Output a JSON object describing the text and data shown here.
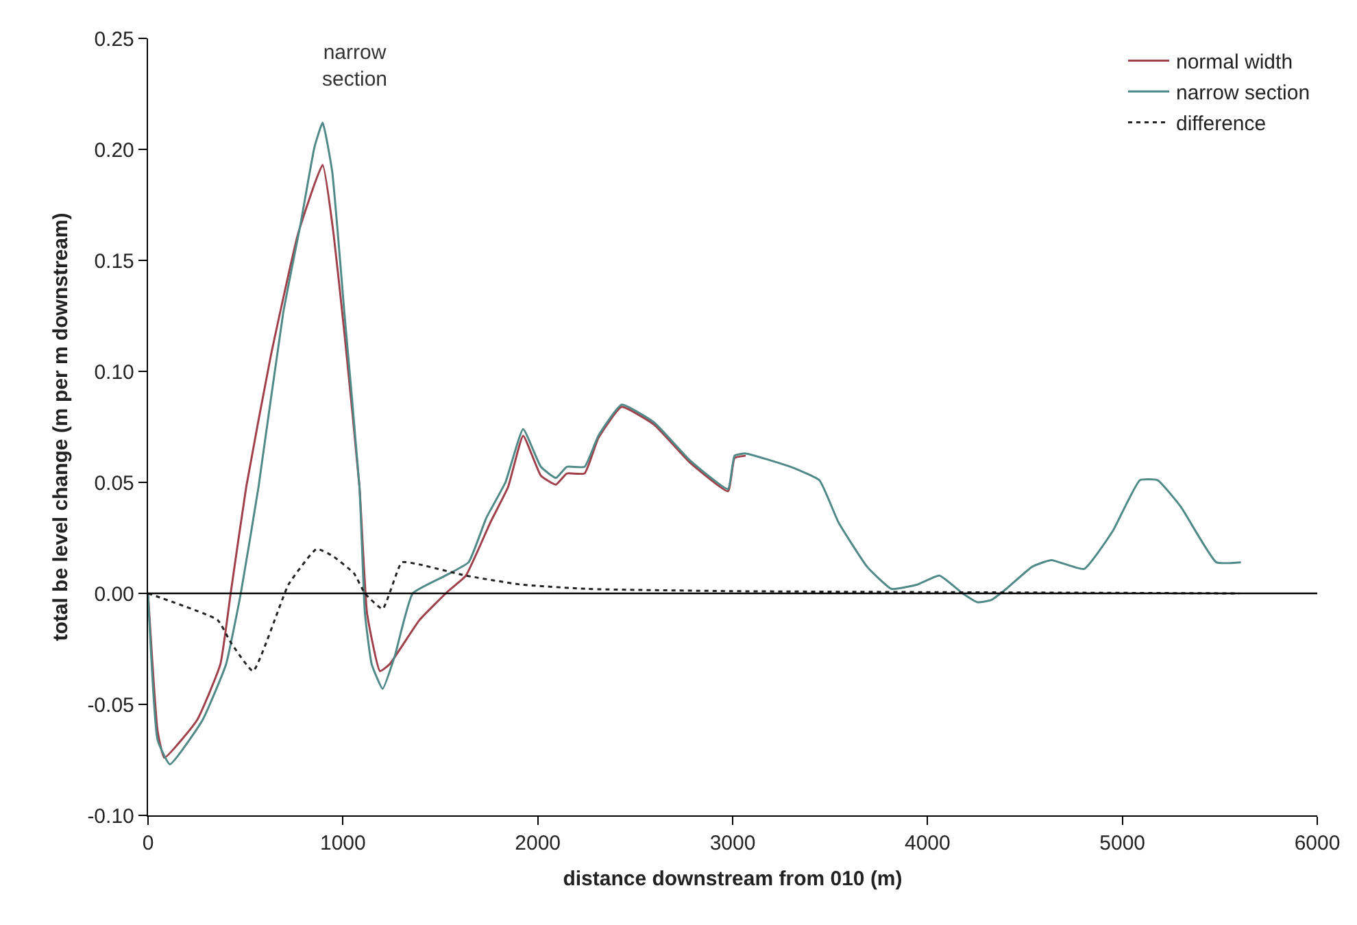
{
  "chart_data": {
    "type": "line",
    "xlabel": "distance downstream from 010 (m)",
    "ylabel": "total be level change (m per m downstream)",
    "xlim": [
      0,
      6000
    ],
    "xticks": [
      0,
      1000,
      2000,
      3000,
      4000,
      5000,
      6000
    ],
    "ylim": [
      -0.1,
      0.25
    ],
    "yticks": [
      {
        "value": -0.1,
        "label": "-0.10"
      },
      {
        "value": -0.05,
        "label": "-0.05"
      },
      {
        "value": 0,
        "label": "0.00"
      },
      {
        "value": 0.05,
        "label": "0.05"
      },
      {
        "value": 0.1,
        "label": "0.10"
      },
      {
        "value": 0.15,
        "label": "0.15"
      },
      {
        "value": 0.2,
        "label": "0.20"
      },
      {
        "value": 0.25,
        "label": "0.25"
      }
    ],
    "legend": "top right",
    "marker": "none",
    "ref_lines": [
      {
        "axis": "y",
        "value": 0,
        "color": "#000000"
      }
    ],
    "annotations": [
      "narrow\nsection"
    ],
    "series": [
      {
        "name": "normal width",
        "color": "#a0404a",
        "line_style": "solid",
        "x": [
          0,
          49,
          84,
          252,
          371,
          424,
          504,
          630,
          770,
          896,
          952,
          1008,
          1085,
          1124,
          1190,
          1239,
          1393,
          1540,
          1631,
          1757,
          1848,
          1925,
          2016,
          2093,
          2149,
          2240,
          2311,
          2430,
          2597,
          2780,
          2976,
          3010,
          3067
        ],
        "values": [
          0,
          -0.062,
          -0.074,
          -0.057,
          -0.032,
          0,
          0.048,
          0.107,
          0.162,
          0.193,
          0.162,
          0.117,
          0.048,
          -0.009,
          -0.035,
          -0.032,
          -0.012,
          0.001,
          0.008,
          0.032,
          0.048,
          0.071,
          0.053,
          0.049,
          0.054,
          0.054,
          0.07,
          0.084,
          0.076,
          0.059,
          0.046,
          0.061,
          0.062
        ]
      },
      {
        "name": "narrow section",
        "color": "#4f8a88",
        "line_style": "solid",
        "x": [
          0,
          49,
          112,
          280,
          400,
          476,
          567,
          693,
          784,
          854,
          896,
          945,
          1008,
          1085,
          1113,
          1148,
          1204,
          1267,
          1358,
          1526,
          1645,
          1736,
          1834,
          1925,
          2016,
          2093,
          2149,
          2240,
          2311,
          2430,
          2597,
          2780,
          2976,
          3010,
          3067,
          3298,
          3445,
          3543,
          3690,
          3816,
          3949,
          4061,
          4180,
          4257,
          4327,
          4404,
          4537,
          4635,
          4803,
          4950,
          5090,
          5181,
          5300,
          5482,
          5608
        ],
        "values": [
          0,
          -0.066,
          -0.077,
          -0.057,
          -0.032,
          0,
          0.048,
          0.126,
          0.167,
          0.201,
          0.212,
          0.19,
          0.126,
          0.048,
          -0.009,
          -0.032,
          -0.043,
          -0.028,
          0,
          0.008,
          0.014,
          0.034,
          0.05,
          0.074,
          0.057,
          0.052,
          0.057,
          0.057,
          0.071,
          0.085,
          0.077,
          0.06,
          0.047,
          0.062,
          0.063,
          0.057,
          0.051,
          0.032,
          0.012,
          0.002,
          0.004,
          0.008,
          0,
          -0.004,
          -0.003,
          0.002,
          0.012,
          0.015,
          0.011,
          0.028,
          0.051,
          0.051,
          0.039,
          0.014,
          0.014
        ]
      },
      {
        "name": "difference",
        "color": "#222222",
        "line_style": "dotted",
        "x": [
          0,
          357,
          424,
          539,
          721,
          865,
          945,
          1057,
          1113,
          1204,
          1302,
          1393,
          1631,
          1911,
          2254,
          3000,
          5600
        ],
        "values": [
          0,
          -0.012,
          -0.022,
          -0.035,
          0.004,
          0.02,
          0.017,
          0.009,
          0,
          -0.007,
          0.014,
          0.013,
          0.008,
          0.004,
          0.002,
          0.001,
          0
        ]
      }
    ]
  }
}
